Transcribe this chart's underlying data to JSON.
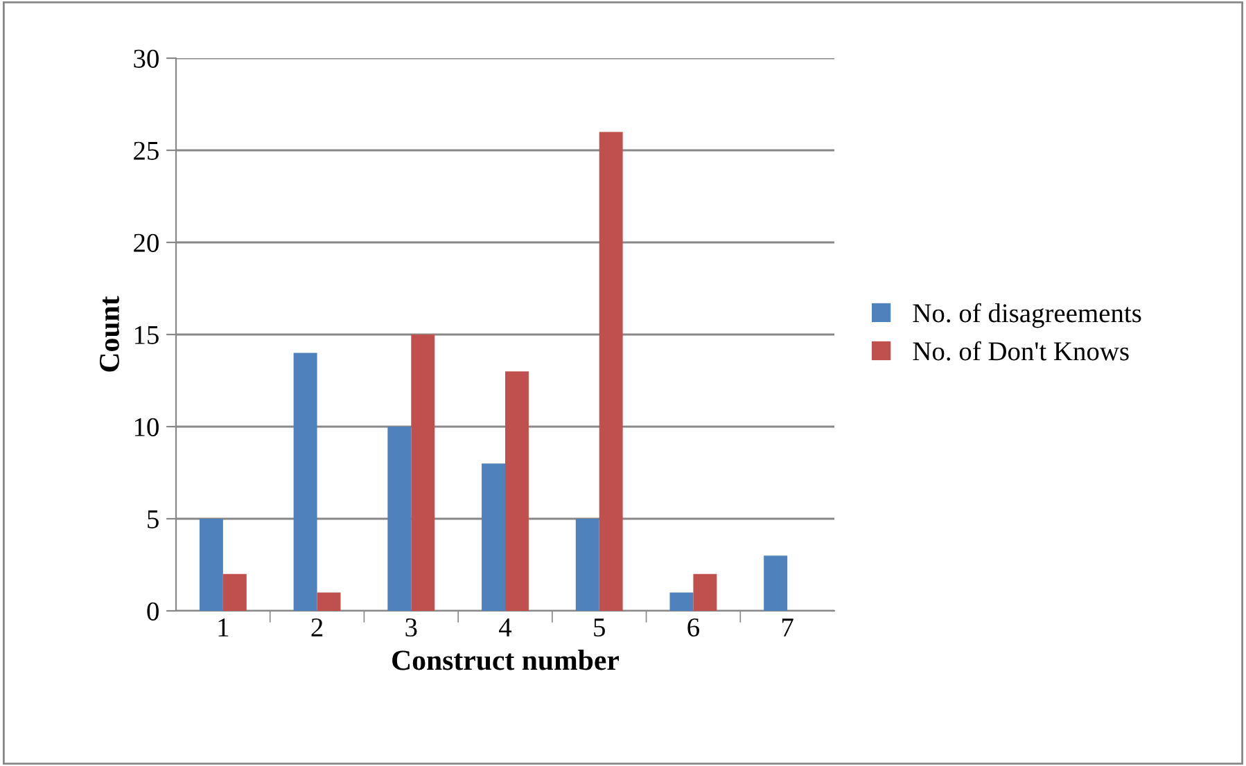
{
  "chart_data": {
    "type": "bar",
    "xlabel": "Construct number",
    "ylabel": "Count",
    "categories": [
      "1",
      "2",
      "3",
      "4",
      "5",
      "6",
      "7"
    ],
    "series": [
      {
        "name": "No. of disagreements",
        "color": "#4f81bd",
        "values": [
          5,
          14,
          10,
          8,
          5,
          1,
          3
        ]
      },
      {
        "name": "No. of Don't Knows",
        "color": "#c0504d",
        "values": [
          2,
          1,
          15,
          13,
          26,
          2,
          0
        ]
      }
    ],
    "ylim": [
      0,
      30
    ],
    "yticks": [
      0,
      5,
      10,
      15,
      20,
      25,
      30
    ],
    "grid": "y",
    "legend": "right"
  }
}
